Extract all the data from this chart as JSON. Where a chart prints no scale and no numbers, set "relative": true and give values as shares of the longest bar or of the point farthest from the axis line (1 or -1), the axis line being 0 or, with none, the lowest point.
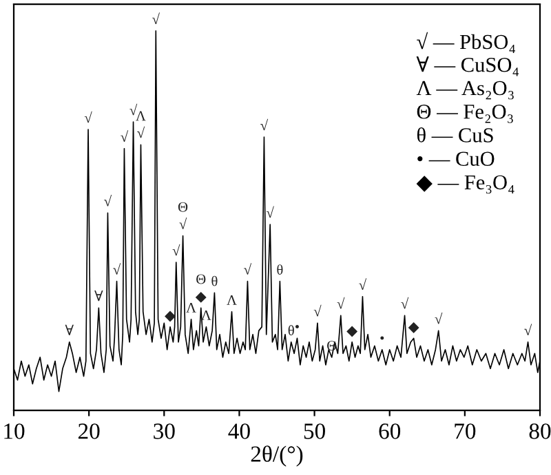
{
  "chart_data": {
    "type": "line",
    "relative": true,
    "xlabel": "2θ/(°)",
    "xlim": [
      10,
      80
    ],
    "xticks": [
      10,
      20,
      30,
      40,
      50,
      60,
      70,
      80
    ],
    "tick_labels": "x",
    "grid": false,
    "legend": false,
    "marker": "none",
    "line_style": "solid",
    "series": [
      {
        "color": "#000000",
        "x": [
          10,
          10.5,
          11,
          11.5,
          12,
          12.5,
          13,
          13.5,
          14,
          14.5,
          15,
          15.5,
          16,
          16.5,
          17,
          17.4,
          17.8,
          18.3,
          18.8,
          19.3,
          19.6,
          19.9,
          20.2,
          20.6,
          21.0,
          21.3,
          21.6,
          22.0,
          22.3,
          22.5,
          22.8,
          23.2,
          23.4,
          23.7,
          24.0,
          24.3,
          24.5,
          24.7,
          25.0,
          25.4,
          25.6,
          25.9,
          26.2,
          26.5,
          26.7,
          26.9,
          27.2,
          27.6,
          28.0,
          28.4,
          28.7,
          28.9,
          29.2,
          29.6,
          30.0,
          30.4,
          30.8,
          31.2,
          31.4,
          31.6,
          31.9,
          32.2,
          32.5,
          32.8,
          33.2,
          33.6,
          33.9,
          34.3,
          34.6,
          34.9,
          35.2,
          35.6,
          36.0,
          36.4,
          36.7,
          37.0,
          37.4,
          37.8,
          38.2,
          38.6,
          39.0,
          39.3,
          39.7,
          40.1,
          40.5,
          40.8,
          41.1,
          41.4,
          41.8,
          42.2,
          42.6,
          43.0,
          43.3,
          43.6,
          44.1,
          44.4,
          44.8,
          45.1,
          45.4,
          45.7,
          46.1,
          46.5,
          46.9,
          47.3,
          47.7,
          48.1,
          48.5,
          48.9,
          49.3,
          49.7,
          50.1,
          50.4,
          50.7,
          51.1,
          51.5,
          51.9,
          52.3,
          52.7,
          53.1,
          53.5,
          53.8,
          54.2,
          54.6,
          55.0,
          55.4,
          55.8,
          56.1,
          56.4,
          56.7,
          57.1,
          57.5,
          58.0,
          58.5,
          59.0,
          59.5,
          60.0,
          60.5,
          61.0,
          61.5,
          62.0,
          62.3,
          62.8,
          63.2,
          63.6,
          64.1,
          64.6,
          65.1,
          65.6,
          66.1,
          66.5,
          66.9,
          67.4,
          67.9,
          68.4,
          68.9,
          69.4,
          69.9,
          70.4,
          71.0,
          71.6,
          72.2,
          72.8,
          73.4,
          74.0,
          74.6,
          75.2,
          75.8,
          76.4,
          77.0,
          77.6,
          78.0,
          78.4,
          78.8,
          79.3,
          79.7,
          80.0
        ],
        "values": [
          0.11,
          0.08,
          0.13,
          0.09,
          0.12,
          0.07,
          0.11,
          0.14,
          0.08,
          0.12,
          0.09,
          0.13,
          0.05,
          0.11,
          0.14,
          0.18,
          0.15,
          0.1,
          0.14,
          0.09,
          0.13,
          0.74,
          0.15,
          0.11,
          0.16,
          0.27,
          0.15,
          0.1,
          0.16,
          0.52,
          0.17,
          0.13,
          0.19,
          0.34,
          0.16,
          0.12,
          0.2,
          0.69,
          0.24,
          0.18,
          0.24,
          0.76,
          0.26,
          0.2,
          0.24,
          0.7,
          0.26,
          0.2,
          0.24,
          0.18,
          0.23,
          1.0,
          0.24,
          0.19,
          0.23,
          0.16,
          0.22,
          0.18,
          0.22,
          0.39,
          0.18,
          0.22,
          0.46,
          0.2,
          0.15,
          0.24,
          0.16,
          0.21,
          0.17,
          0.27,
          0.18,
          0.22,
          0.17,
          0.21,
          0.31,
          0.16,
          0.2,
          0.14,
          0.18,
          0.15,
          0.26,
          0.15,
          0.19,
          0.15,
          0.18,
          0.16,
          0.34,
          0.16,
          0.2,
          0.15,
          0.21,
          0.22,
          0.72,
          0.2,
          0.49,
          0.18,
          0.2,
          0.16,
          0.34,
          0.16,
          0.2,
          0.13,
          0.18,
          0.15,
          0.19,
          0.12,
          0.17,
          0.14,
          0.18,
          0.13,
          0.16,
          0.23,
          0.13,
          0.17,
          0.12,
          0.16,
          0.14,
          0.18,
          0.15,
          0.25,
          0.15,
          0.17,
          0.13,
          0.18,
          0.14,
          0.17,
          0.15,
          0.3,
          0.16,
          0.2,
          0.14,
          0.17,
          0.13,
          0.16,
          0.12,
          0.16,
          0.13,
          0.17,
          0.14,
          0.25,
          0.15,
          0.18,
          0.19,
          0.14,
          0.17,
          0.13,
          0.16,
          0.12,
          0.16,
          0.21,
          0.13,
          0.16,
          0.12,
          0.17,
          0.13,
          0.16,
          0.14,
          0.17,
          0.12,
          0.16,
          0.13,
          0.15,
          0.11,
          0.15,
          0.12,
          0.16,
          0.11,
          0.15,
          0.12,
          0.15,
          0.13,
          0.18,
          0.12,
          0.15,
          0.1,
          0.13
        ]
      }
    ],
    "annotations": [
      {
        "text": "∀",
        "x": 17.4,
        "y": 0.18
      },
      {
        "text": "√",
        "x": 19.9,
        "y": 0.74
      },
      {
        "text": "∀",
        "x": 21.3,
        "y": 0.27
      },
      {
        "text": "√",
        "x": 22.5,
        "y": 0.52
      },
      {
        "text": "√",
        "x": 23.7,
        "y": 0.34
      },
      {
        "text": "√",
        "x": 24.7,
        "y": 0.69
      },
      {
        "text": "√",
        "x": 25.9,
        "y": 0.76
      },
      {
        "text": "√",
        "x": 26.9,
        "y": 0.7
      },
      {
        "text": "Λ",
        "x": 26.9,
        "y": 0.7
      },
      {
        "text": "√",
        "x": 28.9,
        "y": 1.0
      },
      {
        "text": "◆",
        "x": 30.8,
        "y": 0.22
      },
      {
        "text": "√",
        "x": 31.6,
        "y": 0.39
      },
      {
        "text": "√",
        "x": 32.5,
        "y": 0.46
      },
      {
        "text": "Θ",
        "x": 32.5,
        "y": 0.46
      },
      {
        "text": "Λ",
        "x": 33.6,
        "y": 0.24
      },
      {
        "text": "◆",
        "x": 34.9,
        "y": 0.27
      },
      {
        "text": "Θ",
        "x": 34.9,
        "y": 0.27
      },
      {
        "text": "Λ",
        "x": 35.6,
        "y": 0.22
      },
      {
        "text": "θ",
        "x": 36.7,
        "y": 0.31
      },
      {
        "text": "Λ",
        "x": 39.0,
        "y": 0.26
      },
      {
        "text": "√",
        "x": 41.1,
        "y": 0.34
      },
      {
        "text": "√",
        "x": 43.3,
        "y": 0.72
      },
      {
        "text": "√",
        "x": 44.1,
        "y": 0.49
      },
      {
        "text": "θ",
        "x": 45.4,
        "y": 0.34
      },
      {
        "text": "θ",
        "x": 46.9,
        "y": 0.18
      },
      {
        "text": "•",
        "x": 47.7,
        "y": 0.19
      },
      {
        "text": "√",
        "x": 50.4,
        "y": 0.23
      },
      {
        "text": "Θ",
        "x": 52.3,
        "y": 0.14
      },
      {
        "text": "√",
        "x": 53.5,
        "y": 0.25
      },
      {
        "text": "◆",
        "x": 55.0,
        "y": 0.18
      },
      {
        "text": "√",
        "x": 56.4,
        "y": 0.3
      },
      {
        "text": "•",
        "x": 59.0,
        "y": 0.16
      },
      {
        "text": "√",
        "x": 62.0,
        "y": 0.25
      },
      {
        "text": "◆",
        "x": 63.2,
        "y": 0.19
      },
      {
        "text": "√",
        "x": 66.5,
        "y": 0.21
      },
      {
        "text": "√",
        "x": 78.4,
        "y": 0.18
      },
      "√ — PbSO₄",
      "∀ — CuSO₄",
      "Λ — As₂O₃",
      "Θ — Fe₂O₃",
      "θ — CuS",
      "• — CuO",
      "◆ — Fe₃O₄"
    ]
  }
}
